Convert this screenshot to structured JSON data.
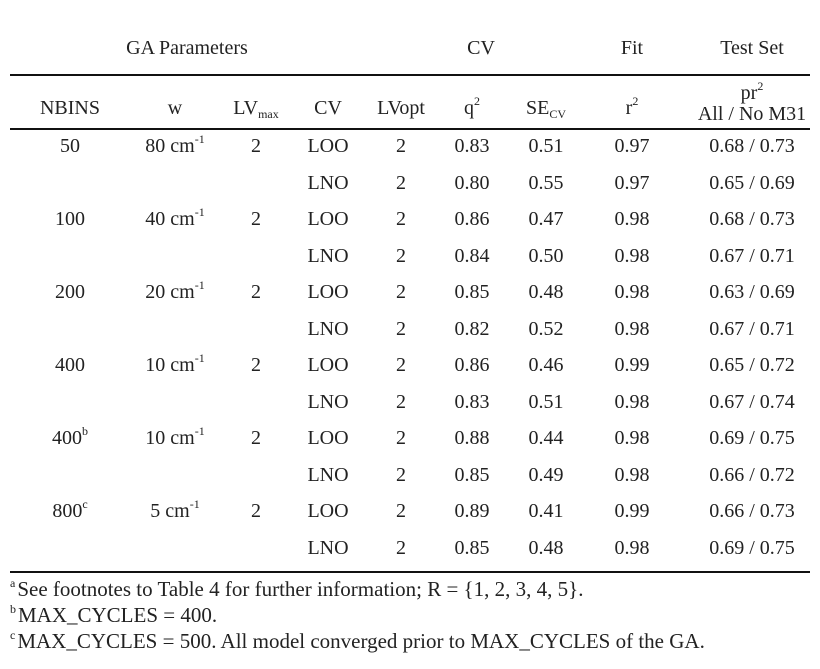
{
  "group_headers": {
    "ga_parameters": "GA Parameters",
    "cv": "CV",
    "fit": "Fit",
    "test_set": "Test Set"
  },
  "columns": {
    "nbins": "NBINS",
    "w": "w",
    "lvmax_base": "LV",
    "lvmax_sub": "max",
    "cv": "CV",
    "lvopt": "LVopt",
    "q2_base": "q",
    "q2_sup": "2",
    "secv_base": "SE",
    "secv_sub": "CV",
    "r2_base": "r",
    "r2_sup": "2",
    "pr2_base": "pr",
    "pr2_sup": "2",
    "pr2_sub": "All / No M31"
  },
  "rows": [
    {
      "nbins": "50",
      "nbins_sup": "",
      "w": "80 cm",
      "w_sup": "-1",
      "lvmax": "2",
      "cv": "LOO",
      "lvopt": "2",
      "q2": "0.83",
      "secv": "0.51",
      "r2": "0.97",
      "pr2": "0.68 / 0.73"
    },
    {
      "nbins": "",
      "nbins_sup": "",
      "w": "",
      "w_sup": "",
      "lvmax": "",
      "cv": "LNO",
      "lvopt": "2",
      "q2": "0.80",
      "secv": "0.55",
      "r2": "0.97",
      "pr2": "0.65 / 0.69"
    },
    {
      "nbins": "100",
      "nbins_sup": "",
      "w": "40 cm",
      "w_sup": "-1",
      "lvmax": "2",
      "cv": "LOO",
      "lvopt": "2",
      "q2": "0.86",
      "secv": "0.47",
      "r2": "0.98",
      "pr2": "0.68 / 0.73"
    },
    {
      "nbins": "",
      "nbins_sup": "",
      "w": "",
      "w_sup": "",
      "lvmax": "",
      "cv": "LNO",
      "lvopt": "2",
      "q2": "0.84",
      "secv": "0.50",
      "r2": "0.98",
      "pr2": "0.67 / 0.71"
    },
    {
      "nbins": "200",
      "nbins_sup": "",
      "w": "20 cm",
      "w_sup": "-1",
      "lvmax": "2",
      "cv": "LOO",
      "lvopt": "2",
      "q2": "0.85",
      "secv": "0.48",
      "r2": "0.98",
      "pr2": "0.63 / 0.69"
    },
    {
      "nbins": "",
      "nbins_sup": "",
      "w": "",
      "w_sup": "",
      "lvmax": "",
      "cv": "LNO",
      "lvopt": "2",
      "q2": "0.82",
      "secv": "0.52",
      "r2": "0.98",
      "pr2": "0.67 / 0.71"
    },
    {
      "nbins": "400",
      "nbins_sup": "",
      "w": "10 cm",
      "w_sup": "-1",
      "lvmax": "2",
      "cv": "LOO",
      "lvopt": "2",
      "q2": "0.86",
      "secv": "0.46",
      "r2": "0.99",
      "pr2": "0.65 / 0.72"
    },
    {
      "nbins": "",
      "nbins_sup": "",
      "w": "",
      "w_sup": "",
      "lvmax": "",
      "cv": "LNO",
      "lvopt": "2",
      "q2": "0.83",
      "secv": "0.51",
      "r2": "0.98",
      "pr2": "0.67 / 0.74"
    },
    {
      "nbins": "400",
      "nbins_sup": "b",
      "w": "10 cm",
      "w_sup": "-1",
      "lvmax": "2",
      "cv": "LOO",
      "lvopt": "2",
      "q2": "0.88",
      "secv": "0.44",
      "r2": "0.98",
      "pr2": "0.69 / 0.75"
    },
    {
      "nbins": "",
      "nbins_sup": "",
      "w": "",
      "w_sup": "",
      "lvmax": "",
      "cv": "LNO",
      "lvopt": "2",
      "q2": "0.85",
      "secv": "0.49",
      "r2": "0.98",
      "pr2": "0.66 / 0.72"
    },
    {
      "nbins": "800",
      "nbins_sup": "c",
      "w": "5 cm",
      "w_sup": "-1",
      "lvmax": "2",
      "cv": "LOO",
      "lvopt": "2",
      "q2": "0.89",
      "secv": "0.41",
      "r2": "0.99",
      "pr2": "0.66 / 0.73"
    },
    {
      "nbins": "",
      "nbins_sup": "",
      "w": "",
      "w_sup": "",
      "lvmax": "",
      "cv": "LNO",
      "lvopt": "2",
      "q2": "0.85",
      "secv": "0.48",
      "r2": "0.98",
      "pr2": "0.69 / 0.75"
    }
  ],
  "footnotes": [
    {
      "mark": "a",
      "text": "See footnotes to Table 4 for further information; R = {1, 2, 3, 4, 5}."
    },
    {
      "mark": "b",
      "text": "MAX_CYCLES = 400."
    },
    {
      "mark": "c",
      "text": "MAX_CYCLES = 500. All model converged prior to MAX_CYCLES of the GA."
    }
  ]
}
